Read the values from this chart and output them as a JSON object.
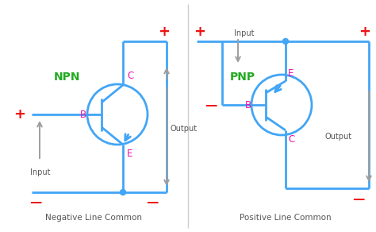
{
  "bg_color": "#ffffff",
  "line_color": "#42A5F5",
  "arrow_color": "#9E9E9E",
  "red_color": "#EE1111",
  "green_color": "#22AA22",
  "pink_color": "#EE11AA",
  "divider_color": "#cccccc",
  "npn_label": "NPN",
  "pnp_label": "PNP",
  "neg_line_label": "Negative Line Common",
  "pos_line_label": "Positive Line Common",
  "b_label": "B",
  "c_label": "C",
  "e_label": "E",
  "input_label": "Input",
  "output_label": "Output",
  "plus_sign": "+",
  "minus_sign": "—"
}
